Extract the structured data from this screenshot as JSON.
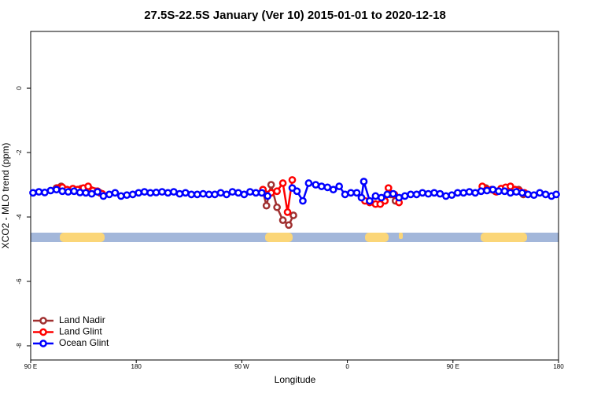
{
  "chart_data": {
    "type": "line",
    "title": "27.5S-22.5S January (Ver 10)   2015-01-01 to 2020-12-18",
    "xlabel": "Longitude",
    "ylabel": "XCO2 - MLO trend (ppm)",
    "xlim": [
      90,
      540
    ],
    "ylim": [
      -8.44,
      1.76
    ],
    "xticks": [
      {
        "value": 90,
        "label": "90 E"
      },
      {
        "value": 180,
        "label": "180"
      },
      {
        "value": 270,
        "label": "90 W"
      },
      {
        "value": 360,
        "label": "0"
      },
      {
        "value": 450,
        "label": "90 E"
      },
      {
        "value": 540,
        "label": "180"
      }
    ],
    "yticks": [
      0,
      -2,
      -4,
      -6,
      -8
    ],
    "legend": "lower left",
    "series": [
      {
        "name": "Land Nadir",
        "color": "#a03030",
        "x": [
          112,
          116,
          125,
          133,
          141,
          145,
          149,
          200,
          288,
          291,
          295,
          300,
          305,
          310,
          314,
          340,
          397,
          401,
          440,
          478,
          486,
          494,
          502,
          506,
          510
        ],
        "values": [
          -3.1,
          -3.05,
          -3.15,
          -3.12,
          -3.15,
          -3.2,
          -3.25,
          null,
          -3.2,
          -3.65,
          -3.0,
          -3.7,
          -4.1,
          -4.25,
          -3.95,
          null,
          -3.3,
          -3.5,
          null,
          -3.1,
          -3.2,
          -3.15,
          -3.2,
          -3.15,
          -3.3
        ]
      },
      {
        "name": "Land Glint",
        "color": "#ff0000",
        "x": [
          113,
          117,
          121,
          126,
          130,
          135,
          139,
          143,
          147,
          151,
          200,
          288,
          291,
          295,
          300,
          305,
          309,
          313,
          340,
          375,
          379,
          384,
          388,
          392,
          395,
          400,
          404,
          440,
          475,
          479,
          483,
          487,
          491,
          495,
          499,
          503,
          507,
          511
        ],
        "values": [
          -3.1,
          -3.08,
          -3.15,
          -3.12,
          -3.15,
          -3.1,
          -3.05,
          -3.18,
          -3.2,
          -3.28,
          null,
          -3.15,
          -3.3,
          -3.25,
          -3.2,
          -2.95,
          -3.85,
          -2.85,
          null,
          -3.5,
          -3.55,
          -3.6,
          -3.6,
          -3.5,
          -3.1,
          -3.3,
          -3.55,
          null,
          -3.05,
          -3.15,
          -3.15,
          -3.22,
          -3.12,
          -3.08,
          -3.05,
          -3.15,
          -3.2,
          -3.25
        ]
      },
      {
        "name": "Ocean Glint",
        "color": "#0000ff",
        "x": [
          92,
          97,
          102,
          107,
          112,
          117,
          122,
          127,
          132,
          137,
          142,
          147,
          152,
          157,
          162,
          167,
          172,
          177,
          182,
          187,
          192,
          197,
          202,
          207,
          212,
          217,
          222,
          227,
          232,
          237,
          242,
          247,
          252,
          257,
          262,
          267,
          272,
          277,
          282,
          287,
          292,
          302,
          313,
          317,
          322,
          327,
          333,
          338,
          343,
          348,
          353,
          358,
          363,
          368,
          372,
          374,
          379,
          384,
          389,
          394,
          399,
          404,
          409,
          414,
          419,
          424,
          429,
          434,
          439,
          444,
          449,
          454,
          459,
          464,
          469,
          474,
          479,
          484,
          489,
          494,
          499,
          504,
          509,
          514,
          519,
          524,
          529,
          534,
          538
        ],
        "values": [
          -3.25,
          -3.22,
          -3.24,
          -3.18,
          -3.15,
          -3.2,
          -3.22,
          -3.2,
          -3.24,
          -3.25,
          -3.28,
          -3.22,
          -3.35,
          -3.3,
          -3.25,
          -3.35,
          -3.32,
          -3.3,
          -3.25,
          -3.22,
          -3.25,
          -3.24,
          -3.22,
          -3.25,
          -3.22,
          -3.28,
          -3.25,
          -3.3,
          -3.3,
          -3.28,
          -3.3,
          -3.3,
          -3.25,
          -3.3,
          -3.22,
          -3.25,
          -3.3,
          -3.22,
          -3.25,
          -3.25,
          -3.35,
          null,
          -3.1,
          -3.2,
          -3.5,
          -2.95,
          -3.0,
          -3.05,
          -3.08,
          -3.15,
          -3.05,
          -3.3,
          -3.25,
          -3.25,
          -3.4,
          -2.9,
          -3.5,
          -3.35,
          -3.4,
          -3.3,
          -3.28,
          -3.4,
          -3.35,
          -3.3,
          -3.3,
          -3.25,
          -3.28,
          -3.25,
          -3.28,
          -3.35,
          -3.32,
          -3.25,
          -3.25,
          -3.22,
          -3.25,
          -3.2,
          -3.18,
          -3.15,
          -3.2,
          -3.2,
          -3.25,
          -3.22,
          -3.25,
          -3.3,
          -3.32,
          -3.25,
          -3.3,
          -3.35,
          -3.3
        ]
      }
    ]
  }
}
